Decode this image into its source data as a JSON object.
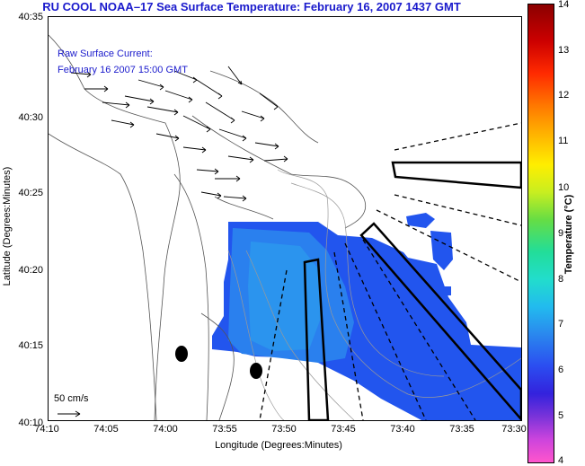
{
  "title": "RU COOL  NOAA–17  Sea Surface Temperature:  February 16, 2007 1437 GMT",
  "current": {
    "label": "Raw Surface Current:",
    "time": "February 16 2007 15:00 GMT",
    "scale_label": "50 cm/s"
  },
  "axes": {
    "xlabel": "Longitude (Degrees:Minutes)",
    "ylabel": "Latitude (Degrees:Minutes)",
    "x_ticks": [
      "74:10",
      "74:05",
      "74:00",
      "73:55",
      "73:50",
      "73:45",
      "73:40",
      "73:35",
      "73:30"
    ],
    "y_ticks": [
      "40:35",
      "40:30",
      "40:25",
      "40:20",
      "40:15",
      "40:10"
    ]
  },
  "colorbar": {
    "label": "Temperature (°C)",
    "ticks": [
      "14",
      "13",
      "12",
      "11",
      "10",
      "9",
      "8",
      "7",
      "6",
      "5",
      "4"
    ]
  },
  "colors": {
    "title": "#1a1acc",
    "sst_main": "#2255ee",
    "sst_warm": "#2a90ee"
  }
}
